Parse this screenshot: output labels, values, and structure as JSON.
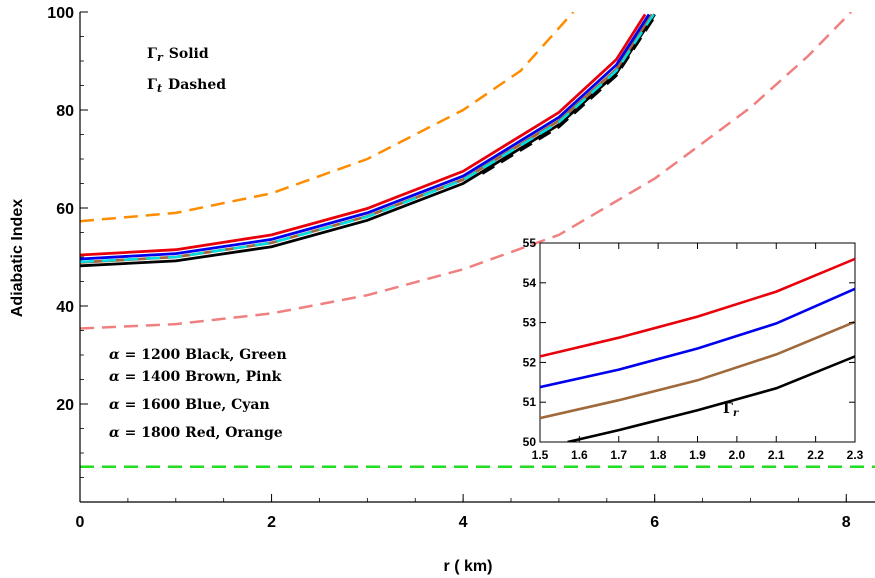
{
  "chart_data": [
    {
      "type": "line",
      "xlabel": "r ( km)",
      "ylabel": "Adiabatic  Index",
      "xlim": [
        0,
        8.3
      ],
      "ylim": [
        0,
        100
      ],
      "xticks": [
        "0",
        "2",
        "4",
        "6",
        "8"
      ],
      "yticks": [
        "20",
        "40",
        "60",
        "80",
        "100"
      ],
      "annotations": {
        "line1_sym": "Γ",
        "line1_sub": "r",
        "line1_text": "Solid",
        "line2_sym": "Γ",
        "line2_sub": "t",
        "line2_text": "Dashed"
      },
      "alpha_legend": [
        {
          "alpha": "α",
          "eq": " = 1200",
          "colors": " Black, Green"
        },
        {
          "alpha": "α",
          "eq": " = 1400",
          "colors": " Brown,  Pink"
        },
        {
          "alpha": "α",
          "eq": " = 1600",
          "colors": " Blue,  Cyan"
        },
        {
          "alpha": "α",
          "eq": " = 1800",
          "colors": " Red,  Orange"
        }
      ],
      "series": [
        {
          "color": "#000000",
          "dash": false,
          "points": [
            [
              0,
              48.2
            ],
            [
              1,
              49.2
            ],
            [
              2,
              52.1
            ],
            [
              3,
              57.5
            ],
            [
              4,
              65.0
            ],
            [
              5,
              77.0
            ],
            [
              5.6,
              87.5
            ],
            [
              6.0,
              99.5
            ]
          ]
        },
        {
          "color": "#a0693b",
          "dash": false,
          "points": [
            [
              0,
              48.9
            ],
            [
              1,
              50.0
            ],
            [
              2,
              52.9
            ],
            [
              3,
              58.3
            ],
            [
              4,
              65.8
            ],
            [
              5,
              77.8
            ],
            [
              5.6,
              88.3
            ],
            [
              5.97,
              99.5
            ]
          ]
        },
        {
          "color": "#0000ee",
          "dash": false,
          "points": [
            [
              0,
              49.6
            ],
            [
              1,
              50.7
            ],
            [
              2,
              53.6
            ],
            [
              3,
              59.0
            ],
            [
              4,
              66.5
            ],
            [
              5,
              78.5
            ],
            [
              5.6,
              89.2
            ],
            [
              5.94,
              99.5
            ]
          ]
        },
        {
          "color": "#e8000b",
          "dash": false,
          "points": [
            [
              0,
              50.4
            ],
            [
              1,
              51.5
            ],
            [
              2,
              54.5
            ],
            [
              3,
              59.9
            ],
            [
              4,
              67.5
            ],
            [
              5,
              79.5
            ],
            [
              5.6,
              90.3
            ],
            [
              5.9,
              99.5
            ]
          ]
        },
        {
          "color": "#00e0e0",
          "dash": true,
          "points": [
            [
              0,
              49.0
            ],
            [
              1,
              50.0
            ],
            [
              2,
              52.9
            ],
            [
              3,
              58.2
            ],
            [
              4,
              65.7
            ],
            [
              5,
              77.5
            ],
            [
              5.6,
              88.0
            ],
            [
              5.99,
              99.5
            ]
          ]
        },
        {
          "color": "#000000",
          "dash": true,
          "points": [
            [
              4.2,
              67.0
            ],
            [
              5,
              76.5
            ],
            [
              5.6,
              87.0
            ],
            [
              6.0,
              99.0
            ]
          ]
        },
        {
          "color": "#f08080",
          "dash": true,
          "points": [
            [
              0,
              35.4
            ],
            [
              1,
              36.3
            ],
            [
              2,
              38.5
            ],
            [
              3,
              42.2
            ],
            [
              4,
              47.5
            ],
            [
              5,
              54.5
            ],
            [
              6,
              66.0
            ],
            [
              7,
              80.5
            ],
            [
              7.6,
              91.0
            ],
            [
              8.05,
              100
            ]
          ]
        },
        {
          "color": "#ff8c00",
          "dash": true,
          "points": [
            [
              0,
              57.3
            ],
            [
              1,
              59.0
            ],
            [
              2,
              63.0
            ],
            [
              3,
              70.0
            ],
            [
              4,
              80.0
            ],
            [
              4.6,
              88.0
            ],
            [
              5.15,
              100
            ]
          ]
        },
        {
          "color": "#22dd22",
          "dash": true,
          "points": [
            [
              0,
              7.2
            ],
            [
              8.3,
              7.2
            ]
          ]
        }
      ]
    },
    {
      "type": "line",
      "xlim": [
        1.5,
        2.3
      ],
      "ylim": [
        50,
        55
      ],
      "xticks": [
        "1.5",
        "1.6",
        "1.7",
        "1.8",
        "1.9",
        "2.0",
        "2.1",
        "2.2",
        "2.3"
      ],
      "yticks": [
        "50",
        "51",
        "52",
        "53",
        "54",
        "55"
      ],
      "label_sym": "Γ",
      "label_sub": "r",
      "series": [
        {
          "color": "#e8000b",
          "points": [
            [
              1.5,
              52.15
            ],
            [
              1.7,
              52.62
            ],
            [
              1.9,
              53.15
            ],
            [
              2.1,
              53.78
            ],
            [
              2.3,
              54.6
            ]
          ]
        },
        {
          "color": "#0000ee",
          "points": [
            [
              1.5,
              51.38
            ],
            [
              1.7,
              51.82
            ],
            [
              1.9,
              52.35
            ],
            [
              2.1,
              52.98
            ],
            [
              2.3,
              53.85
            ]
          ]
        },
        {
          "color": "#a0693b",
          "points": [
            [
              1.5,
              50.6
            ],
            [
              1.7,
              51.05
            ],
            [
              1.9,
              51.55
            ],
            [
              2.1,
              52.2
            ],
            [
              2.3,
              53.02
            ]
          ]
        },
        {
          "color": "#000000",
          "points": [
            [
              1.57,
              50.0
            ],
            [
              1.7,
              50.3
            ],
            [
              1.9,
              50.8
            ],
            [
              2.1,
              51.35
            ],
            [
              2.3,
              52.15
            ]
          ]
        }
      ]
    }
  ]
}
